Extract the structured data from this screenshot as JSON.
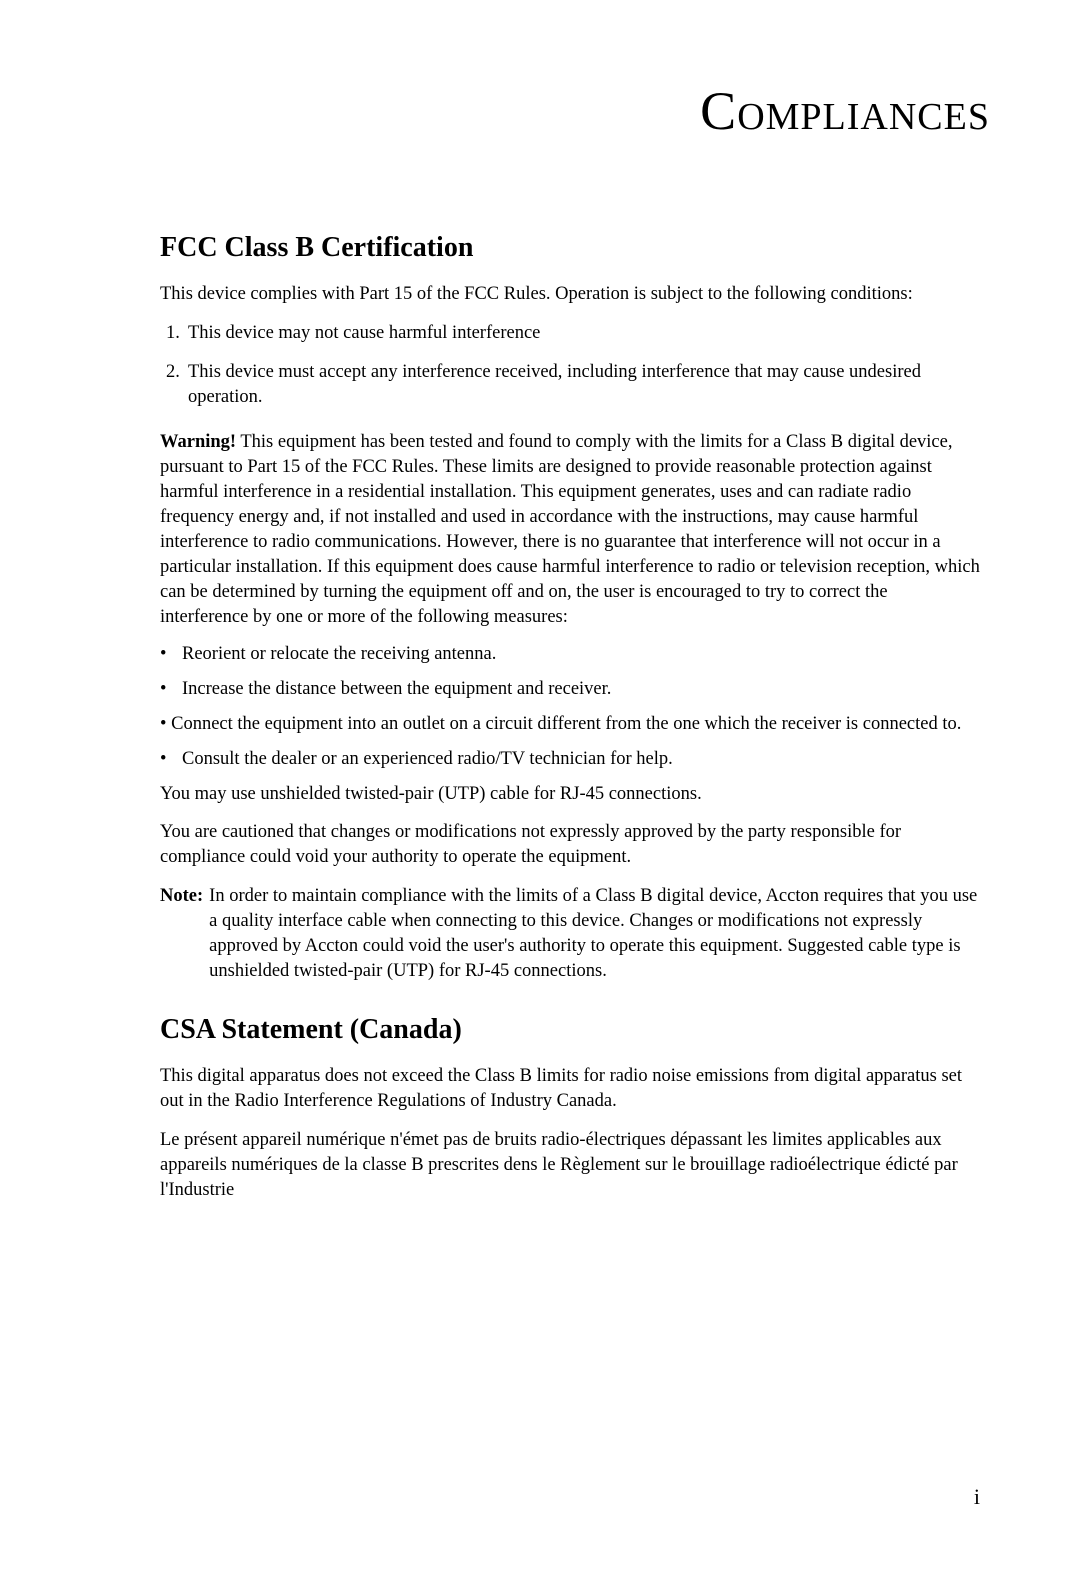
{
  "page": {
    "title": "Compliances",
    "number": "i"
  },
  "fcc": {
    "heading": "FCC Class B Certification",
    "intro": "This device complies with Part 15 of the FCC Rules. Operation is subject to the following conditions:",
    "conditions": [
      "This device may not cause harmful interference",
      "This device must accept any interference received, including interference that may cause undesired operation."
    ],
    "warning_label": "Warning!",
    "warning_text": " This equipment has been tested and found to comply with the limits for a Class B digital device, pursuant to Part 15 of the FCC Rules. These limits are designed to provide reasonable protection against harmful interference in a residential installation. This equipment generates, uses and can radiate radio frequency energy and, if not installed and used in accordance with the instructions, may cause harmful interference to radio communications. However, there is no guarantee that interference will not occur in a particular installation. If this equipment does cause harmful interference to radio or television reception, which can be determined by turning the equipment off and on, the user is encouraged to try to correct the interference by one or more of the following measures:",
    "measures": [
      "Reorient or relocate the receiving antenna.",
      "Increase the distance between the equipment and receiver.",
      "Connect the equipment into an outlet on a circuit different from the one which the receiver is connected to.",
      "Consult the dealer or an experienced radio/TV technician for help."
    ],
    "utp_text": "You may use unshielded twisted-pair (UTP) cable for RJ-45 connections.",
    "caution_text": "You are cautioned that changes or modifications not expressly approved by the party responsible for compliance could void your authority to operate the equipment.",
    "note_label": "Note:",
    "note_text": "In order to maintain compliance with the limits of a Class B digital device, Accton requires that you use a quality interface cable when connecting to this device. Changes or modifications not expressly approved by Accton could void the user's authority to operate this equipment. Suggested cable type is unshielded twisted-pair (UTP) for RJ-45 connections."
  },
  "csa": {
    "heading": "CSA Statement (Canada)",
    "para_en": "This digital apparatus does not exceed the Class B limits for radio noise emissions from digital apparatus set out in the Radio Interference Regulations of Industry Canada.",
    "para_fr": "Le présent appareil numérique n'émet pas de bruits radio-électriques dépassant les limites applicables aux appareils numériques de la classe B prescrites dens le Règlement sur le brouillage radioélectrique édicté par l'Industrie"
  }
}
